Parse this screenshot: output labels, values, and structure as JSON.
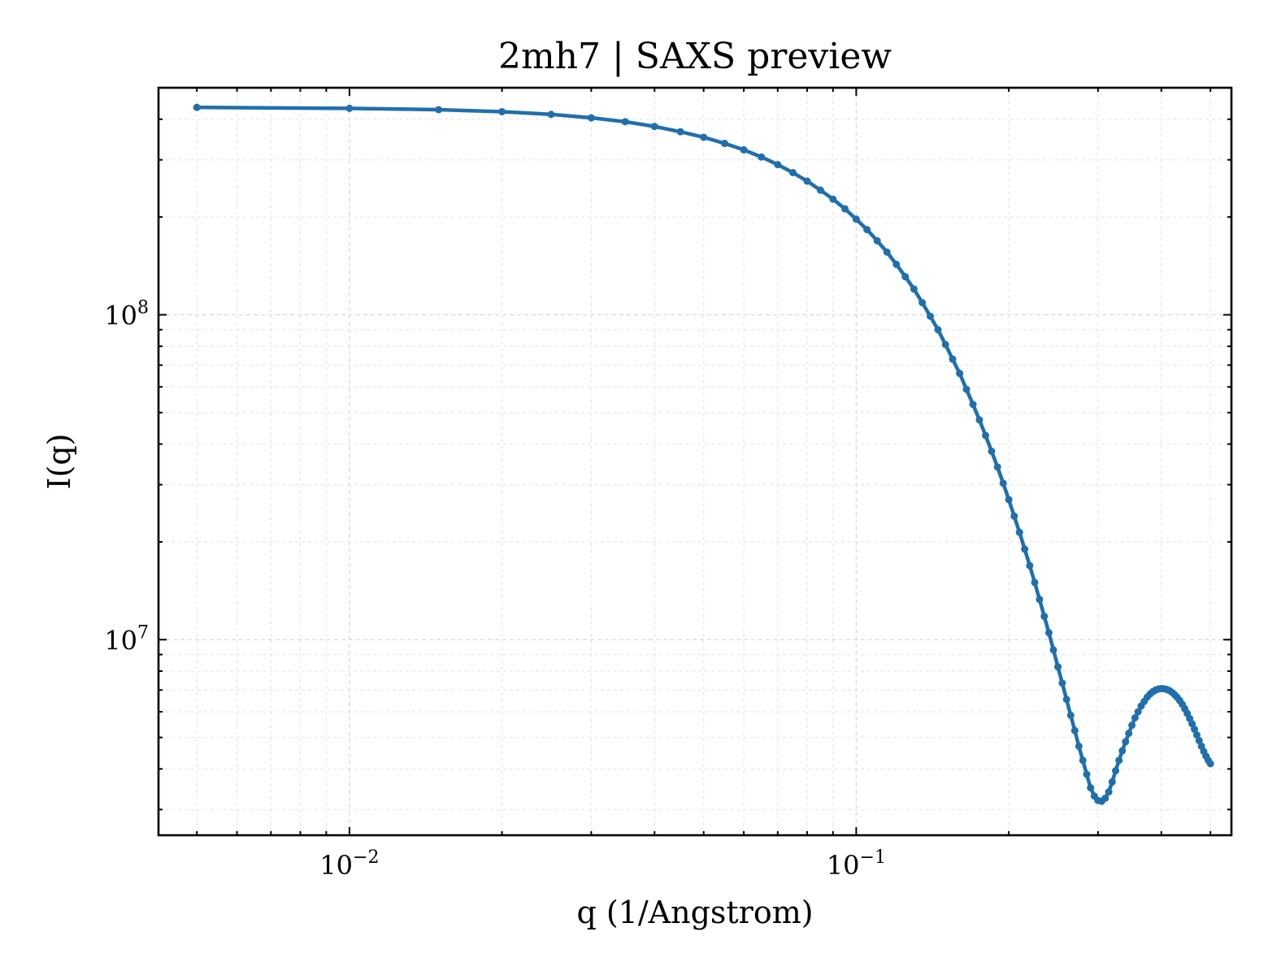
{
  "chart_data": {
    "type": "line",
    "title": "2mh7 | SAXS preview",
    "xlabel": "q (1/Angstrom)",
    "ylabel": "I(q)",
    "xscale": "log",
    "yscale": "log",
    "xlim": [
      0.0042,
      0.55
    ],
    "ylim": [
      2500000,
      500000000
    ],
    "grid": true,
    "legend": "none",
    "x_ticks": [
      {
        "value": 0.01,
        "base": "10",
        "exp": "−2"
      },
      {
        "value": 0.1,
        "base": "10",
        "exp": "−1"
      }
    ],
    "y_ticks": [
      {
        "value": 10000000,
        "base": "10",
        "exp": "7"
      },
      {
        "value": 100000000,
        "base": "10",
        "exp": "8"
      }
    ],
    "series": [
      {
        "color": "#1f6fad",
        "x": [
          0.005,
          0.01,
          0.015,
          0.02,
          0.025,
          0.03,
          0.035,
          0.04,
          0.045,
          0.05,
          0.055,
          0.06,
          0.065,
          0.07,
          0.075,
          0.08,
          0.085,
          0.09,
          0.095,
          0.1,
          0.105,
          0.11,
          0.115,
          0.12,
          0.125,
          0.13,
          0.135,
          0.14,
          0.145,
          0.15,
          0.155,
          0.16,
          0.165,
          0.17,
          0.175,
          0.18,
          0.185,
          0.19,
          0.195,
          0.2,
          0.205,
          0.21,
          0.215,
          0.22,
          0.225,
          0.23,
          0.235,
          0.24,
          0.245,
          0.25,
          0.255,
          0.26,
          0.265,
          0.27,
          0.275,
          0.28,
          0.285,
          0.29,
          0.295,
          0.3,
          0.305,
          0.31,
          0.315,
          0.32,
          0.325,
          0.33,
          0.335,
          0.34,
          0.345,
          0.35,
          0.355,
          0.36,
          0.365,
          0.37,
          0.375,
          0.38,
          0.385,
          0.39,
          0.395,
          0.4,
          0.405,
          0.41,
          0.415,
          0.42,
          0.425,
          0.43,
          0.435,
          0.44,
          0.445,
          0.45,
          0.455,
          0.46,
          0.465,
          0.47,
          0.475,
          0.48,
          0.485,
          0.49,
          0.495,
          0.5
        ],
        "y": [
          435000000,
          432000000,
          428000000,
          422000000,
          414000000,
          404000000,
          393000000,
          380000000,
          366000000,
          352000000,
          337000000,
          322000000,
          306000000,
          290000000,
          274000000,
          258000000,
          242000000,
          227000000,
          212000000,
          197000000,
          183000000,
          169000000,
          156000000,
          143000000,
          131000000,
          120000000,
          109000000,
          99000000,
          90000000,
          81000000,
          73000000,
          66000000,
          59000000,
          53000000,
          47500000,
          42500000,
          38000000,
          34000000,
          30300000,
          27000000,
          24000000,
          21400000,
          19000000,
          16900000,
          15000000,
          13300000,
          11800000,
          10500000,
          9300000,
          8250000,
          7350000,
          6550000,
          5850000,
          5250000,
          4700000,
          4250000,
          3850000,
          3500000,
          3300000,
          3200000,
          3180000,
          3250000,
          3400000,
          3650000,
          3950000,
          4250000,
          4550000,
          4850000,
          5150000,
          5450000,
          5750000,
          6000000,
          6250000,
          6450000,
          6650000,
          6800000,
          6920000,
          7000000,
          7050000,
          7070000,
          7060000,
          7030000,
          6970000,
          6880000,
          6770000,
          6640000,
          6490000,
          6320000,
          6130000,
          5930000,
          5720000,
          5510000,
          5300000,
          5090000,
          4890000,
          4700000,
          4530000,
          4380000,
          4250000,
          4150000
        ]
      }
    ]
  }
}
